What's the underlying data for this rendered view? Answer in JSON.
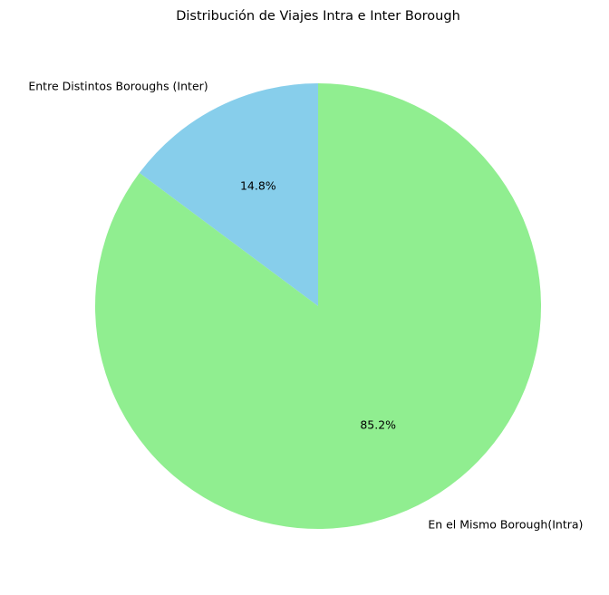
{
  "chart_data": {
    "type": "pie",
    "title": "Distribución de Viajes Intra e Inter Borough",
    "categories": [
      "Entre Distintos Boroughs (Inter)",
      "En el Mismo Borough(Intra)"
    ],
    "values": [
      14.8,
      85.2
    ],
    "value_labels": [
      "14.8%",
      "85.2%"
    ],
    "colors": [
      "#87ceeb",
      "#90ee90"
    ],
    "start_angle_deg": 90,
    "direction": "counterclockwise"
  }
}
